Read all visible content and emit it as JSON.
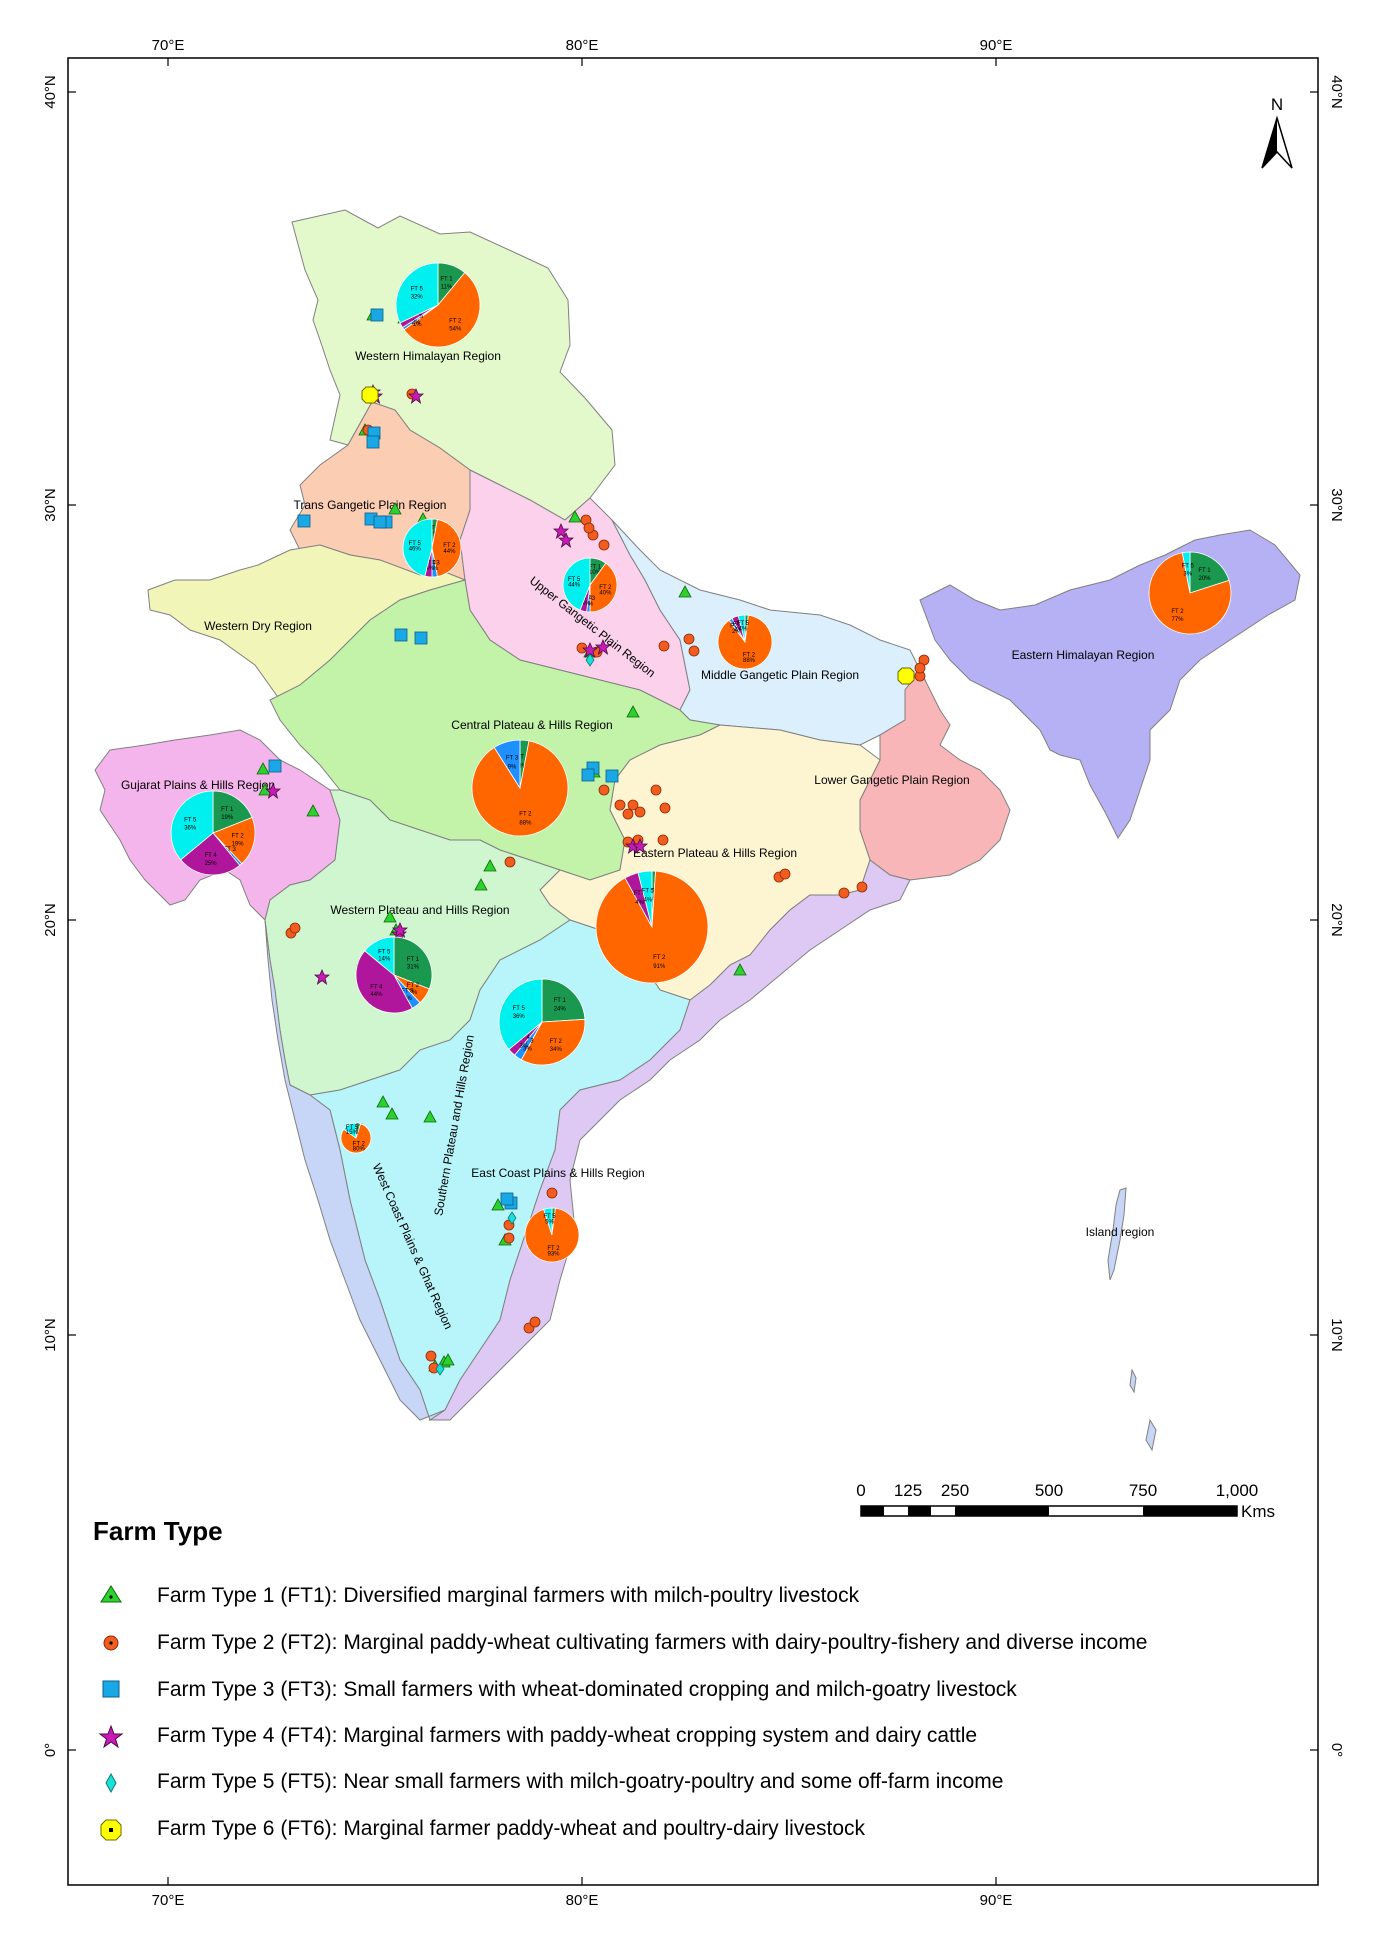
{
  "map": {
    "graticule": {
      "top": [
        "70°E",
        "80°E",
        "90°E"
      ],
      "bottom": [
        "70°E",
        "80°E",
        "90°E"
      ],
      "left": [
        "40°N",
        "30°N",
        "20°N",
        "10°N",
        "0°"
      ],
      "right": [
        "40°N",
        "30°N",
        "20°N",
        "10°N",
        "0°"
      ]
    },
    "north_arrow": "N",
    "regions": {
      "western_himalayan": "Western Himalayan Region",
      "trans_gangetic": "Trans Gangetic Plain Region",
      "upper_gangetic": "Upper Gangetic Plain Region",
      "western_dry": "Western Dry Region",
      "middle_gangetic": "Middle Gangetic Plain Region",
      "eastern_himalayan": "Eastern Himalayan Region",
      "central_plateau": "Central Plateau & Hills Region",
      "lower_gangetic": "Lower Gangetic Plain Region",
      "gujarat": "Gujarat Plains & Hills Region",
      "eastern_plateau": "Eastern Plateau & Hills Region",
      "western_plateau": "Western Plateau and Hills Region",
      "southern_plateau": "Southern Plateau and Hills Region",
      "east_coast": "East Coast Plains & Hills Region",
      "west_coast": "West Coast Plains & Ghat Region",
      "island": "Island region"
    },
    "pies": [
      {
        "region": "Western Himalayan",
        "slices": [
          {
            "label": "FT 1",
            "pct": 11,
            "text": "11%"
          },
          {
            "label": "FT 2",
            "pct": 54,
            "text": "54%"
          },
          {
            "label": "FT 3",
            "pct": 1,
            "text": "1%"
          },
          {
            "label": "FT 4",
            "pct": 2,
            "text": "2%"
          },
          {
            "label": "FT 5",
            "pct": 32,
            "text": "32%"
          }
        ]
      },
      {
        "region": "Trans Gangetic",
        "slices": [
          {
            "label": "FT 1",
            "pct": 3,
            "text": "3%"
          },
          {
            "label": "FT 2",
            "pct": 44,
            "text": "44%"
          },
          {
            "label": "FT 3",
            "pct": 3,
            "text": "3%"
          },
          {
            "label": "FT 4",
            "pct": 4,
            "text": "4%"
          },
          {
            "label": "FT 5",
            "pct": 46,
            "text": "46%"
          }
        ]
      },
      {
        "region": "Upper Gangetic",
        "slices": [
          {
            "label": "FT 1",
            "pct": 10,
            "text": "10%"
          },
          {
            "label": "FT 2",
            "pct": 40,
            "text": "40%"
          },
          {
            "label": "FT 3",
            "pct": 2,
            "text": "2%"
          },
          {
            "label": "FT 4",
            "pct": 4,
            "text": "4%"
          },
          {
            "label": "FT 5",
            "pct": 44,
            "text": "44%"
          }
        ]
      },
      {
        "region": "Middle Gangetic",
        "slices": [
          {
            "label": "FT 1",
            "pct": 2,
            "text": "2%"
          },
          {
            "label": "FT 2",
            "pct": 88,
            "text": "88%"
          },
          {
            "label": "FT 3",
            "pct": 2,
            "text": "2%"
          },
          {
            "label": "FT 4",
            "pct": 4,
            "text": "4%"
          },
          {
            "label": "FT 5",
            "pct": 4,
            "text": "4%"
          }
        ]
      },
      {
        "region": "Eastern Himalayan",
        "slices": [
          {
            "label": "FT 1",
            "pct": 20,
            "text": "20%"
          },
          {
            "label": "FT 2",
            "pct": 77,
            "text": "77%"
          },
          {
            "label": "FT 5",
            "pct": 3,
            "text": "3%"
          }
        ]
      },
      {
        "region": "Central Plateau",
        "slices": [
          {
            "label": "FT 1",
            "pct": 3,
            "text": "3%"
          },
          {
            "label": "FT 2",
            "pct": 88,
            "text": "88%"
          },
          {
            "label": "FT 3",
            "pct": 9,
            "text": "9%"
          }
        ]
      },
      {
        "region": "Gujarat",
        "slices": [
          {
            "label": "FT 1",
            "pct": 19,
            "text": "19%"
          },
          {
            "label": "FT 2",
            "pct": 19,
            "text": "19%"
          },
          {
            "label": "FT 3",
            "pct": 1,
            "text": "1%"
          },
          {
            "label": "FT 4",
            "pct": 25,
            "text": "25%"
          },
          {
            "label": "FT 5",
            "pct": 36,
            "text": "36%"
          }
        ]
      },
      {
        "region": "Eastern Plateau",
        "slices": [
          {
            "label": "FT 1",
            "pct": 1,
            "text": "1%"
          },
          {
            "label": "FT 2",
            "pct": 91,
            "text": "91%"
          },
          {
            "label": "FT 4",
            "pct": 4,
            "text": "4%"
          },
          {
            "label": "FT 5",
            "pct": 4,
            "text": "4%"
          }
        ]
      },
      {
        "region": "Western Plateau",
        "slices": [
          {
            "label": "FT 1",
            "pct": 31,
            "text": "31%"
          },
          {
            "label": "FT 2",
            "pct": 7,
            "text": "7%"
          },
          {
            "label": "FT 3",
            "pct": 4,
            "text": "4%"
          },
          {
            "label": "FT 4",
            "pct": 44,
            "text": "44%"
          },
          {
            "label": "FT 5",
            "pct": 14,
            "text": "14%"
          }
        ]
      },
      {
        "region": "Southern Plateau",
        "slices": [
          {
            "label": "FT 1",
            "pct": 24,
            "text": "24%"
          },
          {
            "label": "FT 2",
            "pct": 34,
            "text": "34%"
          },
          {
            "label": "FT 3",
            "pct": 3,
            "text": "3%"
          },
          {
            "label": "FT 4",
            "pct": 3,
            "text": "3%"
          },
          {
            "label": "FT 5",
            "pct": 36,
            "text": "36%"
          }
        ]
      },
      {
        "region": "West Coast",
        "slices": [
          {
            "label": "FT 1",
            "pct": 5,
            "text": "5%"
          },
          {
            "label": "FT 2",
            "pct": 80,
            "text": "80%"
          },
          {
            "label": "FT 5",
            "pct": 15,
            "text": "15%"
          }
        ]
      },
      {
        "region": "East Coast",
        "slices": [
          {
            "label": "FT 1",
            "pct": 2,
            "text": "2%"
          },
          {
            "label": "FT 2",
            "pct": 93,
            "text": "93%"
          },
          {
            "label": "FT 5",
            "pct": 5,
            "text": "5%"
          }
        ]
      }
    ],
    "colors": {
      "ft1": "#1a9850",
      "ft2": "#ff6600",
      "ft3": "#1e90ff",
      "ft4": "#b0169c",
      "ft5": "#00f0f0",
      "ft6": "#ffff00"
    }
  },
  "scale_bar": {
    "ticks": [
      "0",
      "125",
      "250",
      "500",
      "750",
      "1,000"
    ],
    "unit": "Kms"
  },
  "legend": {
    "title": "Farm Type",
    "items": [
      {
        "icon": "green-triangle-icon",
        "text": "Farm Type 1 (FT1): Diversified marginal farmers with milch-poultry livestock"
      },
      {
        "icon": "orange-circle-icon",
        "text": "Farm Type 2 (FT2): Marginal paddy-wheat cultivating farmers with dairy-poultry-fishery and diverse income"
      },
      {
        "icon": "blue-square-icon",
        "text": "Farm Type 3 (FT3): Small farmers with wheat-dominated cropping and milch-goatry livestock"
      },
      {
        "icon": "magenta-star-icon",
        "text": "Farm Type 4 (FT4): Marginal farmers with paddy-wheat cropping system and dairy cattle"
      },
      {
        "icon": "cyan-diamond-icon",
        "text": "Farm Type 5 (FT5): Near small farmers with milch-goatry-poultry and some off-farm income"
      },
      {
        "icon": "yellow-octagon-icon",
        "text": "Farm Type 6 (FT6):  Marginal farmer paddy-wheat and poultry-dairy livestock"
      }
    ]
  }
}
